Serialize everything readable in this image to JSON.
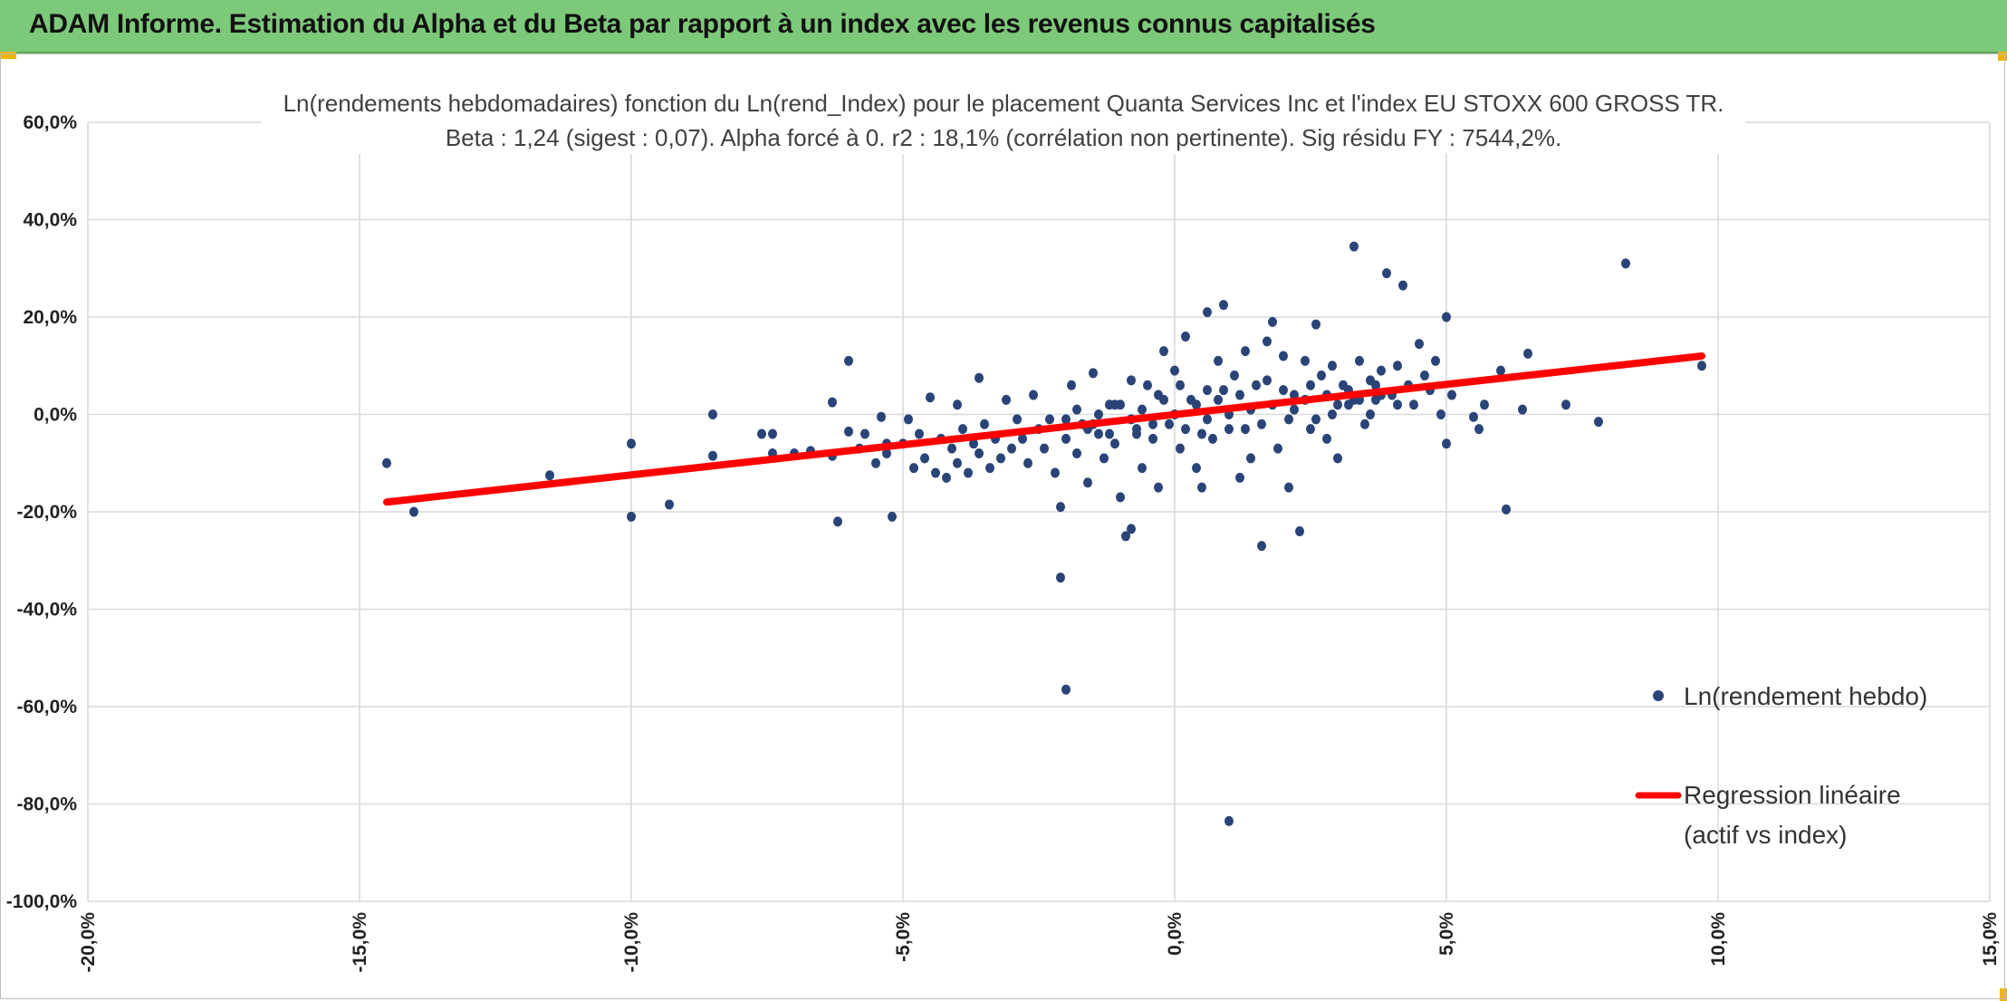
{
  "header": {
    "title": "ADAM Informe. Estimation du Alpha et du Beta par rapport à un index avec les revenus connus capitalisés"
  },
  "colors": {
    "header_bg": "#7dc97a",
    "points": "#2a4478",
    "regression": "#ff0000",
    "grid": "#d9d9d9"
  },
  "chart_data": {
    "type": "scatter",
    "title_lines": [
      "Ln(rendements hebdomadaires) fonction du Ln(rend_Index) pour le placement Quanta Services Inc et l'index EU STOXX 600 GROSS TR.",
      "Beta : 1,24 (sigest : 0,07). Alpha forcé à 0. r2 : 18,1% (corrélation non pertinente). Sig résidu FY : 7544,2%."
    ],
    "xlim": [
      -0.2,
      0.15
    ],
    "ylim": [
      -1.0,
      0.6
    ],
    "x_ticks": [
      -0.2,
      -0.15,
      -0.1,
      -0.05,
      0.0,
      0.05,
      0.1,
      0.15
    ],
    "x_tick_labels": [
      "-20,0%",
      "-15,0%",
      "-10,0%",
      "-5,0%",
      "0,0%",
      "5,0%",
      "10,0%",
      "15,0%"
    ],
    "y_ticks": [
      0.6,
      0.4,
      0.2,
      0.0,
      -0.2,
      -0.4,
      -0.6,
      -0.8,
      -1.0
    ],
    "y_tick_labels": [
      "60,0%",
      "40,0%",
      "20,0%",
      "0,0%",
      "-20,0%",
      "-40,0%",
      "-60,0%",
      "-80,0%",
      "-100,0%"
    ],
    "grid": true,
    "legend_position": "right",
    "series": [
      {
        "name": "Ln(rendement hebdo)",
        "type": "scatter",
        "points": [
          [
            -0.145,
            -0.1
          ],
          [
            -0.14,
            -0.2
          ],
          [
            -0.115,
            -0.125
          ],
          [
            -0.1,
            -0.06
          ],
          [
            -0.1,
            -0.21
          ],
          [
            -0.093,
            -0.185
          ],
          [
            -0.085,
            0.0
          ],
          [
            -0.085,
            -0.085
          ],
          [
            -0.076,
            -0.04
          ],
          [
            -0.074,
            -0.04
          ],
          [
            -0.074,
            -0.08
          ],
          [
            -0.07,
            -0.08
          ],
          [
            -0.067,
            -0.075
          ],
          [
            -0.063,
            -0.085
          ],
          [
            -0.063,
            0.025
          ],
          [
            -0.062,
            -0.22
          ],
          [
            -0.06,
            0.11
          ],
          [
            -0.06,
            -0.035
          ],
          [
            -0.058,
            -0.07
          ],
          [
            -0.057,
            -0.04
          ],
          [
            -0.055,
            -0.1
          ],
          [
            -0.054,
            -0.005
          ],
          [
            -0.053,
            -0.06
          ],
          [
            -0.053,
            -0.08
          ],
          [
            -0.052,
            -0.21
          ],
          [
            -0.05,
            -0.06
          ],
          [
            -0.049,
            -0.01
          ],
          [
            -0.048,
            -0.11
          ],
          [
            -0.047,
            -0.04
          ],
          [
            -0.046,
            -0.09
          ],
          [
            -0.045,
            0.035
          ],
          [
            -0.044,
            -0.12
          ],
          [
            -0.043,
            -0.05
          ],
          [
            -0.042,
            -0.13
          ],
          [
            -0.041,
            -0.07
          ],
          [
            -0.04,
            0.02
          ],
          [
            -0.04,
            -0.1
          ],
          [
            -0.039,
            -0.03
          ],
          [
            -0.038,
            -0.12
          ],
          [
            -0.037,
            -0.06
          ],
          [
            -0.036,
            0.075
          ],
          [
            -0.036,
            -0.08
          ],
          [
            -0.035,
            -0.02
          ],
          [
            -0.034,
            -0.11
          ],
          [
            -0.033,
            -0.05
          ],
          [
            -0.032,
            -0.09
          ],
          [
            -0.031,
            0.03
          ],
          [
            -0.03,
            -0.07
          ],
          [
            -0.029,
            -0.01
          ],
          [
            -0.028,
            -0.05
          ],
          [
            -0.027,
            -0.1
          ],
          [
            -0.026,
            0.04
          ],
          [
            -0.025,
            -0.03
          ],
          [
            -0.024,
            -0.07
          ],
          [
            -0.023,
            -0.01
          ],
          [
            -0.022,
            -0.12
          ],
          [
            -0.021,
            -0.19
          ],
          [
            -0.021,
            -0.335
          ],
          [
            -0.02,
            -0.565
          ],
          [
            -0.02,
            -0.05
          ],
          [
            -0.019,
            0.06
          ],
          [
            -0.018,
            -0.08
          ],
          [
            -0.017,
            -0.02
          ],
          [
            -0.016,
            -0.14
          ],
          [
            -0.015,
            0.085
          ],
          [
            -0.014,
            -0.04
          ],
          [
            -0.013,
            -0.09
          ],
          [
            -0.012,
            0.02
          ],
          [
            -0.011,
            -0.06
          ],
          [
            -0.01,
            -0.17
          ],
          [
            -0.009,
            -0.25
          ],
          [
            -0.008,
            -0.235
          ],
          [
            -0.008,
            0.07
          ],
          [
            -0.007,
            -0.03
          ],
          [
            -0.006,
            -0.11
          ],
          [
            -0.005,
            0.06
          ],
          [
            -0.004,
            -0.05
          ],
          [
            -0.003,
            -0.15
          ],
          [
            -0.002,
            0.13
          ],
          [
            -0.001,
            -0.02
          ],
          [
            0.0,
            0.09
          ],
          [
            0.001,
            -0.07
          ],
          [
            0.002,
            0.16
          ],
          [
            0.003,
            0.03
          ],
          [
            0.004,
            -0.11
          ],
          [
            0.005,
            -0.15
          ],
          [
            0.006,
            0.21
          ],
          [
            0.006,
            0.05
          ],
          [
            0.007,
            -0.05
          ],
          [
            0.008,
            0.11
          ],
          [
            0.009,
            0.225
          ],
          [
            0.01,
            -0.03
          ],
          [
            0.01,
            -0.835
          ],
          [
            0.011,
            0.08
          ],
          [
            0.012,
            -0.13
          ],
          [
            0.013,
            0.13
          ],
          [
            0.014,
            -0.09
          ],
          [
            0.015,
            0.06
          ],
          [
            0.016,
            -0.27
          ],
          [
            0.017,
            0.15
          ],
          [
            0.018,
            0.19
          ],
          [
            0.019,
            -0.07
          ],
          [
            0.02,
            0.12
          ],
          [
            0.021,
            -0.15
          ],
          [
            0.022,
            0.04
          ],
          [
            0.023,
            -0.24
          ],
          [
            0.024,
            0.11
          ],
          [
            0.025,
            -0.03
          ],
          [
            0.026,
            0.185
          ],
          [
            0.027,
            0.08
          ],
          [
            0.028,
            -0.05
          ],
          [
            0.029,
            0.1
          ],
          [
            0.03,
            -0.09
          ],
          [
            0.031,
            0.06
          ],
          [
            0.032,
            0.02
          ],
          [
            0.033,
            0.345
          ],
          [
            0.034,
            0.11
          ],
          [
            0.035,
            -0.02
          ],
          [
            0.036,
            0.07
          ],
          [
            0.037,
            0.03
          ],
          [
            0.038,
            0.09
          ],
          [
            0.039,
            0.29
          ],
          [
            0.04,
            0.04
          ],
          [
            0.041,
            0.1
          ],
          [
            0.042,
            0.265
          ],
          [
            0.043,
            0.06
          ],
          [
            0.044,
            0.02
          ],
          [
            0.045,
            0.145
          ],
          [
            0.046,
            0.08
          ],
          [
            0.047,
            0.05
          ],
          [
            0.048,
            0.11
          ],
          [
            0.049,
            0.0
          ],
          [
            0.05,
            0.2
          ],
          [
            0.05,
            -0.06
          ],
          [
            0.051,
            0.04
          ],
          [
            0.055,
            -0.005
          ],
          [
            0.056,
            -0.03
          ],
          [
            0.057,
            0.02
          ],
          [
            0.06,
            0.09
          ],
          [
            0.061,
            -0.195
          ],
          [
            0.064,
            0.01
          ],
          [
            0.065,
            0.125
          ],
          [
            0.072,
            0.02
          ],
          [
            0.078,
            -0.015
          ],
          [
            0.083,
            0.31
          ],
          [
            0.097,
            0.1
          ],
          [
            -0.02,
            -0.01
          ],
          [
            -0.018,
            0.01
          ],
          [
            -0.016,
            -0.03
          ],
          [
            -0.014,
            0.0
          ],
          [
            -0.012,
            -0.04
          ],
          [
            -0.01,
            0.02
          ],
          [
            -0.008,
            -0.01
          ],
          [
            -0.006,
            0.01
          ],
          [
            -0.004,
            -0.02
          ],
          [
            -0.002,
            0.03
          ],
          [
            0.0,
            0.0
          ],
          [
            0.002,
            -0.03
          ],
          [
            0.004,
            0.02
          ],
          [
            0.006,
            -0.01
          ],
          [
            0.008,
            0.03
          ],
          [
            0.01,
            0.0
          ],
          [
            0.012,
            0.04
          ],
          [
            0.014,
            0.01
          ],
          [
            0.016,
            -0.02
          ],
          [
            0.018,
            0.02
          ],
          [
            0.02,
            0.05
          ],
          [
            0.022,
            0.01
          ],
          [
            0.024,
            0.03
          ],
          [
            0.026,
            -0.01
          ],
          [
            0.028,
            0.04
          ],
          [
            0.03,
            0.02
          ],
          [
            0.032,
            0.05
          ],
          [
            0.034,
            0.03
          ],
          [
            0.036,
            0.0
          ],
          [
            0.038,
            0.04
          ],
          [
            -0.015,
            -0.02
          ],
          [
            -0.011,
            0.02
          ],
          [
            -0.007,
            -0.04
          ],
          [
            -0.003,
            0.04
          ],
          [
            0.001,
            0.06
          ],
          [
            0.005,
            -0.04
          ],
          [
            0.009,
            0.05
          ],
          [
            0.013,
            -0.03
          ],
          [
            0.017,
            0.07
          ],
          [
            0.021,
            -0.01
          ],
          [
            0.025,
            0.06
          ],
          [
            0.029,
            0.0
          ],
          [
            0.033,
            0.03
          ],
          [
            0.037,
            0.06
          ],
          [
            0.041,
            0.02
          ]
        ]
      },
      {
        "name": "Regression linéaire (actif vs index)",
        "legend_lines": [
          "Regression linéaire",
          "(actif vs index)"
        ],
        "type": "line",
        "x": [
          -0.145,
          0.097
        ],
        "y": [
          -0.18,
          0.12
        ]
      }
    ]
  }
}
